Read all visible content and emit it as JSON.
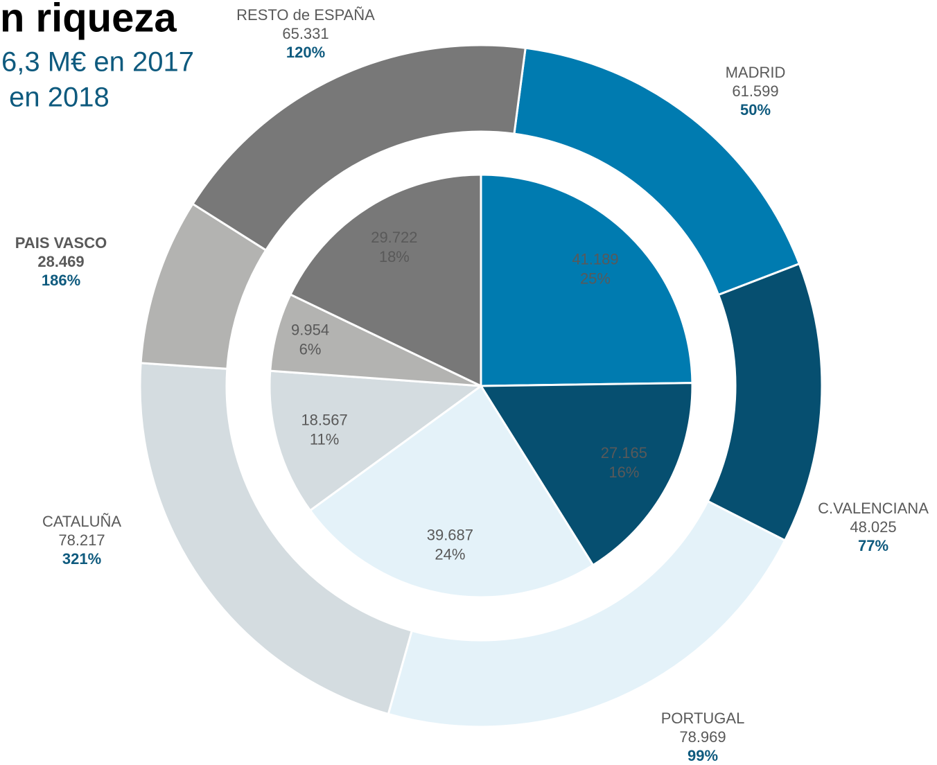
{
  "title": "n riqueza",
  "subtitle": [
    "6,3 M€ en 2017",
    " en 2018"
  ],
  "chart_data": [
    {
      "type": "pie",
      "values": [
        41189,
        27165,
        39687,
        18567,
        9954,
        29722
      ],
      "value_labels": [
        "41.189",
        "27.165",
        "39.687",
        "18.567",
        "9.954",
        "29.722"
      ],
      "shares": [
        25,
        16,
        24,
        11,
        6,
        18
      ],
      "share_labels": [
        "25%",
        "16%",
        "24%",
        "11%",
        "6%",
        "18%"
      ],
      "colors": [
        "#007bb0",
        "#064f70",
        "#e4f2f9",
        "#d4dce0",
        "#b3b3b1",
        "#787878"
      ]
    },
    {
      "type": "donut",
      "categories": [
        "MADRID",
        "C.VALENCIANA",
        "PORTUGAL",
        "CATALUÑA",
        "PAIS VASCO",
        "RESTO de ESPAÑA"
      ],
      "values": [
        61599,
        48025,
        78969,
        78217,
        28469,
        65331
      ],
      "value_labels": [
        "61.599",
        "48.025",
        "78.969",
        "78.217",
        "28.469",
        "65.331"
      ],
      "growth": [
        50,
        77,
        99,
        321,
        186,
        120
      ],
      "growth_labels": [
        "50%",
        "77%",
        "99%",
        "321%",
        "186%",
        "120%"
      ],
      "colors": [
        "#007bb0",
        "#064f70",
        "#e4f2f9",
        "#d4dce0",
        "#b3b3b1",
        "#787878"
      ]
    }
  ]
}
